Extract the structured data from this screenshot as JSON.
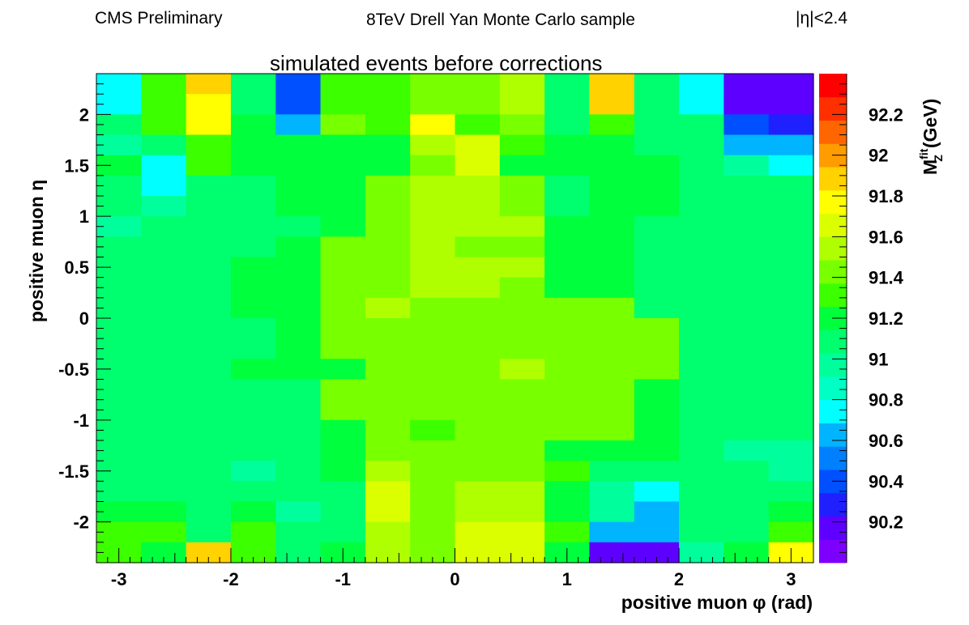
{
  "header": {
    "left": "CMS Preliminary",
    "center": "8TeV Drell Yan Monte Carlo sample",
    "right": "|η|<2.4"
  },
  "chart_data": {
    "type": "heatmap",
    "title": "simulated events before corrections",
    "xlabel": "positive muon  φ (rad)",
    "ylabel": "positive muon  η",
    "zlabel_main": "M",
    "zlabel_sup": "fit",
    "zlabel_sub": "Z",
    "zlabel_unit": "(GeV)",
    "xlim": [
      -3.2,
      3.2
    ],
    "ylim": [
      -2.4,
      2.4
    ],
    "zlim": [
      90.0,
      92.4
    ],
    "nx": 16,
    "ny": 24,
    "x_ticks": [
      -3,
      -2,
      -1,
      0,
      1,
      2,
      3
    ],
    "x_tick_labels": [
      "-3",
      "-2",
      "-1",
      "0",
      "1",
      "2",
      "3"
    ],
    "y_ticks": [
      -2,
      -1.5,
      -1,
      -0.5,
      0,
      0.5,
      1,
      1.5,
      2
    ],
    "y_tick_labels": [
      "-2",
      "-1.5",
      "-1",
      "-0.5",
      "0",
      "0.5",
      "1",
      "1.5",
      "2"
    ],
    "z_ticks": [
      90.2,
      90.4,
      90.6,
      90.8,
      91,
      91.2,
      91.4,
      91.6,
      91.8,
      92,
      92.2
    ],
    "z_tick_labels": [
      "90.2",
      "90.4",
      "90.6",
      "90.8",
      "91",
      "91.2",
      "91.4",
      "91.6",
      "91.8",
      "92",
      "92.2"
    ],
    "colors": [
      "#7d00ff",
      "#5e00ff",
      "#2020ff",
      "#0050ff",
      "#0080ff",
      "#00b4ff",
      "#00ffff",
      "#00ffc4",
      "#00ff9c",
      "#00ff6e",
      "#00ff3c",
      "#3cff00",
      "#78ff00",
      "#afff00",
      "#dcff00",
      "#ffff00",
      "#ffd200",
      "#ff9c00",
      "#ff6600",
      "#ff3000",
      "#ff0000"
    ],
    "z_values_rows_top_to_bottom": [
      [
        90.8,
        91.33,
        91.85,
        91.05,
        90.4,
        91.33,
        91.33,
        91.44,
        91.44,
        91.56,
        91.05,
        91.85,
        91.05,
        90.8,
        90.15,
        90.15
      ],
      [
        90.8,
        91.33,
        91.73,
        91.05,
        90.4,
        91.33,
        91.33,
        91.44,
        91.44,
        91.56,
        91.05,
        91.85,
        91.05,
        90.8,
        90.15,
        90.15
      ],
      [
        91.05,
        91.33,
        91.73,
        91.17,
        90.68,
        91.47,
        91.33,
        91.8,
        91.33,
        91.47,
        91.05,
        91.33,
        91.05,
        91.05,
        90.4,
        90.3
      ],
      [
        90.92,
        91.05,
        91.28,
        91.17,
        91.17,
        91.2,
        91.2,
        91.5,
        91.61,
        91.33,
        91.2,
        91.2,
        91.05,
        91.05,
        90.68,
        90.68
      ],
      [
        91.17,
        90.8,
        91.28,
        91.17,
        91.2,
        91.2,
        91.2,
        91.4,
        91.61,
        91.2,
        91.2,
        91.2,
        91.2,
        91.05,
        90.92,
        90.8
      ],
      [
        91.05,
        90.8,
        91.05,
        91.05,
        91.2,
        91.2,
        91.4,
        91.5,
        91.5,
        91.4,
        91.05,
        91.2,
        91.2,
        91.05,
        91.05,
        91.05
      ],
      [
        91.05,
        90.92,
        91.05,
        91.05,
        91.2,
        91.2,
        91.4,
        91.5,
        91.5,
        91.4,
        91.05,
        91.2,
        91.2,
        91.05,
        91.05,
        91.05
      ],
      [
        90.92,
        91.05,
        91.05,
        91.05,
        91.05,
        91.2,
        91.4,
        91.5,
        91.5,
        91.5,
        91.2,
        91.2,
        91.05,
        91.05,
        91.05,
        91.05
      ],
      [
        91.05,
        91.05,
        91.05,
        91.1,
        91.2,
        91.4,
        91.4,
        91.5,
        91.4,
        91.4,
        91.2,
        91.2,
        91.05,
        91.05,
        91.05,
        91.05
      ],
      [
        91.05,
        91.1,
        91.05,
        91.2,
        91.2,
        91.4,
        91.4,
        91.5,
        91.5,
        91.5,
        91.2,
        91.2,
        91.05,
        91.05,
        91.05,
        91.05
      ],
      [
        91.05,
        91.05,
        91.05,
        91.2,
        91.2,
        91.4,
        91.4,
        91.5,
        91.5,
        91.4,
        91.2,
        91.2,
        91.05,
        91.05,
        91.05,
        91.05
      ],
      [
        91.05,
        91.05,
        91.05,
        91.2,
        91.2,
        91.4,
        91.5,
        91.4,
        91.4,
        91.4,
        91.4,
        91.4,
        91.1,
        91.05,
        91.05,
        91.05
      ],
      [
        91.05,
        91.05,
        91.05,
        91.1,
        91.2,
        91.4,
        91.4,
        91.4,
        91.4,
        91.4,
        91.4,
        91.4,
        91.4,
        91.05,
        91.05,
        91.05
      ],
      [
        91.05,
        91.05,
        91.1,
        91.1,
        91.2,
        91.4,
        91.4,
        91.4,
        91.4,
        91.4,
        91.4,
        91.4,
        91.4,
        91.05,
        91.05,
        91.05
      ],
      [
        91.05,
        91.05,
        91.1,
        91.2,
        91.2,
        91.2,
        91.4,
        91.4,
        91.4,
        91.5,
        91.4,
        91.4,
        91.4,
        91.1,
        91.1,
        91.05
      ],
      [
        91.05,
        91.05,
        91.05,
        91.1,
        91.1,
        91.4,
        91.4,
        91.4,
        91.4,
        91.4,
        91.4,
        91.4,
        91.2,
        91.05,
        91.05,
        91.05
      ],
      [
        91.05,
        91.05,
        91.05,
        91.1,
        91.1,
        91.4,
        91.4,
        91.4,
        91.4,
        91.4,
        91.4,
        91.4,
        91.2,
        91.05,
        91.05,
        91.05
      ],
      [
        91.05,
        91.1,
        91.05,
        91.1,
        91.1,
        91.2,
        91.4,
        91.3,
        91.4,
        91.4,
        91.4,
        91.4,
        91.2,
        91.05,
        91.05,
        91.05
      ],
      [
        91.05,
        91.1,
        91.05,
        91.05,
        91.1,
        91.2,
        91.4,
        91.4,
        91.4,
        91.4,
        91.2,
        91.2,
        91.2,
        91.05,
        90.92,
        90.92
      ],
      [
        91.05,
        91.1,
        91.1,
        90.92,
        91.1,
        91.2,
        91.5,
        91.4,
        91.4,
        91.4,
        91.3,
        91.05,
        91.05,
        91.05,
        91.05,
        90.92
      ],
      [
        91.1,
        91.1,
        91.1,
        91.1,
        91.1,
        91.1,
        91.61,
        91.4,
        91.5,
        91.5,
        91.2,
        90.92,
        90.8,
        91.1,
        91.1,
        91.1
      ],
      [
        91.2,
        91.2,
        91.1,
        91.2,
        90.92,
        91.1,
        91.61,
        91.4,
        91.5,
        91.5,
        91.2,
        90.92,
        90.6,
        91.05,
        91.05,
        91.2
      ],
      [
        91.33,
        91.33,
        91.1,
        91.33,
        91.05,
        91.1,
        91.5,
        91.4,
        91.61,
        91.61,
        91.33,
        90.68,
        90.6,
        91.05,
        91.05,
        91.33
      ],
      [
        91.33,
        91.2,
        91.85,
        91.33,
        91.05,
        91.2,
        91.5,
        91.4,
        91.61,
        91.61,
        91.2,
        90.15,
        90.15,
        90.92,
        91.2,
        91.75
      ]
    ]
  }
}
